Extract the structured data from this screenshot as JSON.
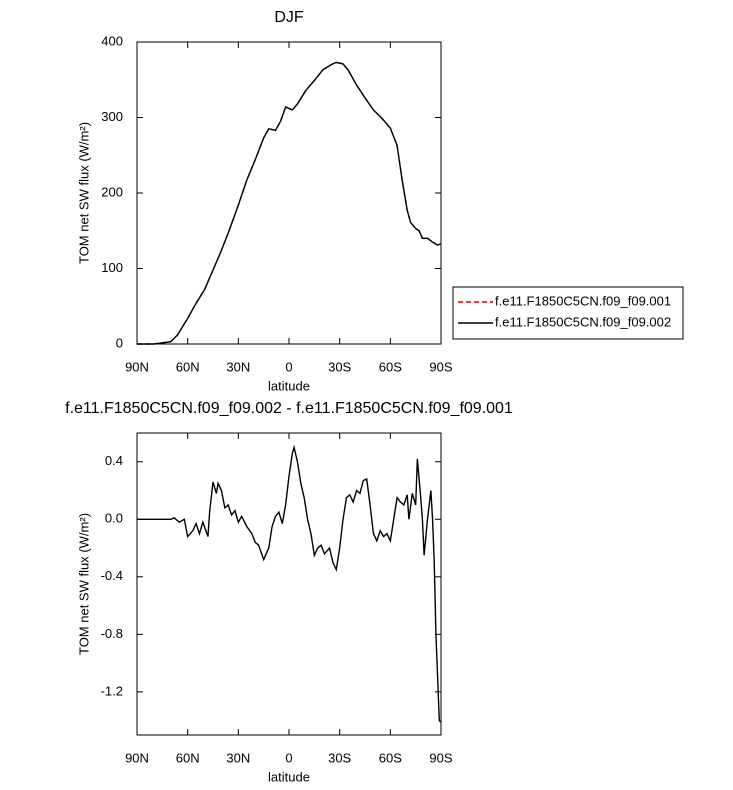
{
  "chart_data": [
    {
      "type": "line",
      "title": "DJF",
      "x_label": "latitude",
      "y_label": "TOM net SW flux (W/m²)",
      "x": [
        90,
        80,
        70,
        66,
        60,
        55,
        50,
        45,
        40,
        35,
        30,
        25,
        20,
        15,
        12,
        8,
        5,
        2,
        0,
        -2,
        -5,
        -10,
        -15,
        -20,
        -25,
        -28,
        -32,
        -35,
        -40,
        -45,
        -50,
        -55,
        -60,
        -64,
        -67,
        -70,
        -72,
        -75,
        -77,
        -79,
        -82,
        -85,
        -88,
        -90
      ],
      "series": [
        {
          "name": "f.e11.F1850C5CN.f09_f09.001",
          "color": "#cc0000",
          "line_style": "dashed",
          "values": [
            0,
            0,
            3,
            12,
            34,
            54,
            72,
            98,
            124,
            153,
            184,
            217,
            244,
            273,
            285,
            283,
            295,
            314,
            312,
            310,
            318,
            336,
            349,
            363,
            370,
            373,
            371,
            363,
            343,
            326,
            310,
            299,
            286,
            263,
            217,
            177,
            161,
            153,
            150,
            140,
            140,
            135,
            131,
            133
          ]
        },
        {
          "name": "f.e11.F1850C5CN.f09_f09.002",
          "color": "#000000",
          "line_style": "solid",
          "values": [
            0,
            0,
            3,
            12,
            34,
            54,
            72,
            98,
            124,
            153,
            184,
            217,
            244,
            273,
            285,
            283,
            295,
            314,
            312,
            310,
            318,
            336,
            349,
            363,
            370,
            373,
            371,
            363,
            343,
            326,
            310,
            299,
            286,
            263,
            217,
            177,
            161,
            153,
            150,
            140,
            140,
            135,
            131,
            133
          ]
        }
      ],
      "xlim": [
        90,
        -90
      ],
      "xticks": [
        {
          "value": 90,
          "label": "90N"
        },
        {
          "value": 60,
          "label": "60N"
        },
        {
          "value": 30,
          "label": "30N"
        },
        0,
        {
          "value": -30,
          "label": "30S"
        },
        {
          "value": -60,
          "label": "60S"
        },
        {
          "value": -90,
          "label": "90S"
        }
      ],
      "ylim": [
        0,
        400
      ],
      "yticks": [
        0,
        100,
        200,
        300,
        400
      ],
      "legend": "right"
    },
    {
      "type": "line",
      "title": "f.e11.F1850C5CN.f09_f09.002 - f.e11.F1850C5CN.f09_f09.001",
      "x_label": "latitude",
      "y_label": "TOM net SW flux (W/m²)",
      "x": [
        90,
        80,
        70,
        68,
        65,
        62,
        60,
        57,
        55,
        53,
        51,
        48,
        47,
        45,
        43,
        42,
        40,
        38,
        36,
        34,
        32,
        30,
        28,
        25,
        22,
        20,
        18,
        15,
        12,
        10,
        8,
        6,
        4,
        2,
        0,
        -2,
        -3,
        -5,
        -7,
        -9,
        -11,
        -13,
        -15,
        -17,
        -19,
        -21,
        -24,
        -26,
        -28,
        -30,
        -32,
        -34,
        -36,
        -38,
        -40,
        -42,
        -44,
        -46,
        -48,
        -50,
        -52,
        -54,
        -56,
        -58,
        -60,
        -62,
        -64,
        -66,
        -68,
        -70,
        -71,
        -73,
        -75,
        -76,
        -78,
        -79,
        -80,
        -82,
        -84,
        -85,
        -86,
        -87,
        -89,
        -90
      ],
      "series": [
        {
          "color": "#000000",
          "line_style": "solid",
          "values": [
            0,
            0,
            0,
            0.01,
            -0.02,
            0.0,
            -0.12,
            -0.08,
            -0.03,
            -0.1,
            -0.02,
            -0.12,
            0.05,
            0.26,
            0.18,
            0.25,
            0.2,
            0.08,
            0.1,
            0.03,
            0.06,
            -0.02,
            0.02,
            -0.05,
            -0.1,
            -0.16,
            -0.18,
            -0.28,
            -0.2,
            -0.05,
            0.02,
            0.05,
            -0.03,
            0.1,
            0.3,
            0.46,
            0.5,
            0.4,
            0.25,
            0.15,
            0.0,
            -0.1,
            -0.25,
            -0.2,
            -0.18,
            -0.24,
            -0.2,
            -0.3,
            -0.35,
            -0.2,
            0.0,
            0.15,
            0.17,
            0.12,
            0.2,
            0.18,
            0.27,
            0.28,
            0.1,
            -0.1,
            -0.15,
            -0.08,
            -0.12,
            -0.1,
            -0.15,
            0.0,
            0.15,
            0.12,
            0.1,
            0.17,
            0.0,
            0.18,
            0.1,
            0.42,
            0.15,
            0.0,
            -0.25,
            0.0,
            0.2,
            0.0,
            -0.3,
            -0.8,
            -1.4,
            -1.41
          ]
        }
      ],
      "xlim": [
        90,
        -90
      ],
      "xticks": [
        {
          "value": 90,
          "label": "90N"
        },
        {
          "value": 60,
          "label": "60N"
        },
        {
          "value": 30,
          "label": "30N"
        },
        0,
        {
          "value": -30,
          "label": "30S"
        },
        {
          "value": -60,
          "label": "60S"
        },
        {
          "value": -90,
          "label": "90S"
        }
      ],
      "ylim": [
        -1.5,
        0.6
      ],
      "yticks": [
        {
          "value": -1.2,
          "label": "-1.2"
        },
        -0.8,
        -0.4,
        {
          "value": 0,
          "label": "0.0"
        },
        0.4
      ]
    }
  ]
}
